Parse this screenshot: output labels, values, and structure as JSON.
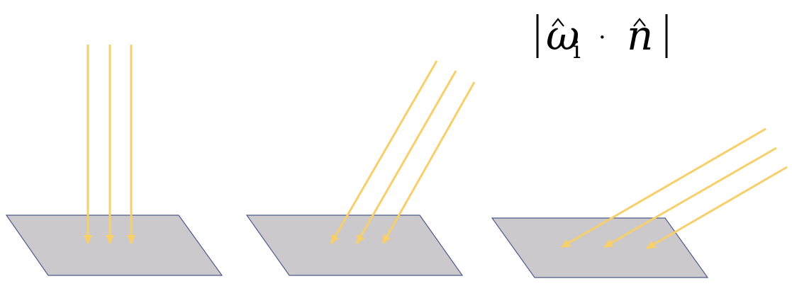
{
  "formula": {
    "omega": "ω",
    "subscript": "i",
    "dot": "·",
    "normal": "n"
  },
  "colors": {
    "surface_fill": "#cbc9cc",
    "surface_stroke": "#4e5a8c",
    "ray": "#f7cf6b",
    "text": "#000000"
  },
  "panels": [
    {
      "name": "normal-incidence",
      "rays": 3
    },
    {
      "name": "oblique-incidence",
      "rays": 3
    },
    {
      "name": "grazing-incidence",
      "rays": 3
    }
  ]
}
